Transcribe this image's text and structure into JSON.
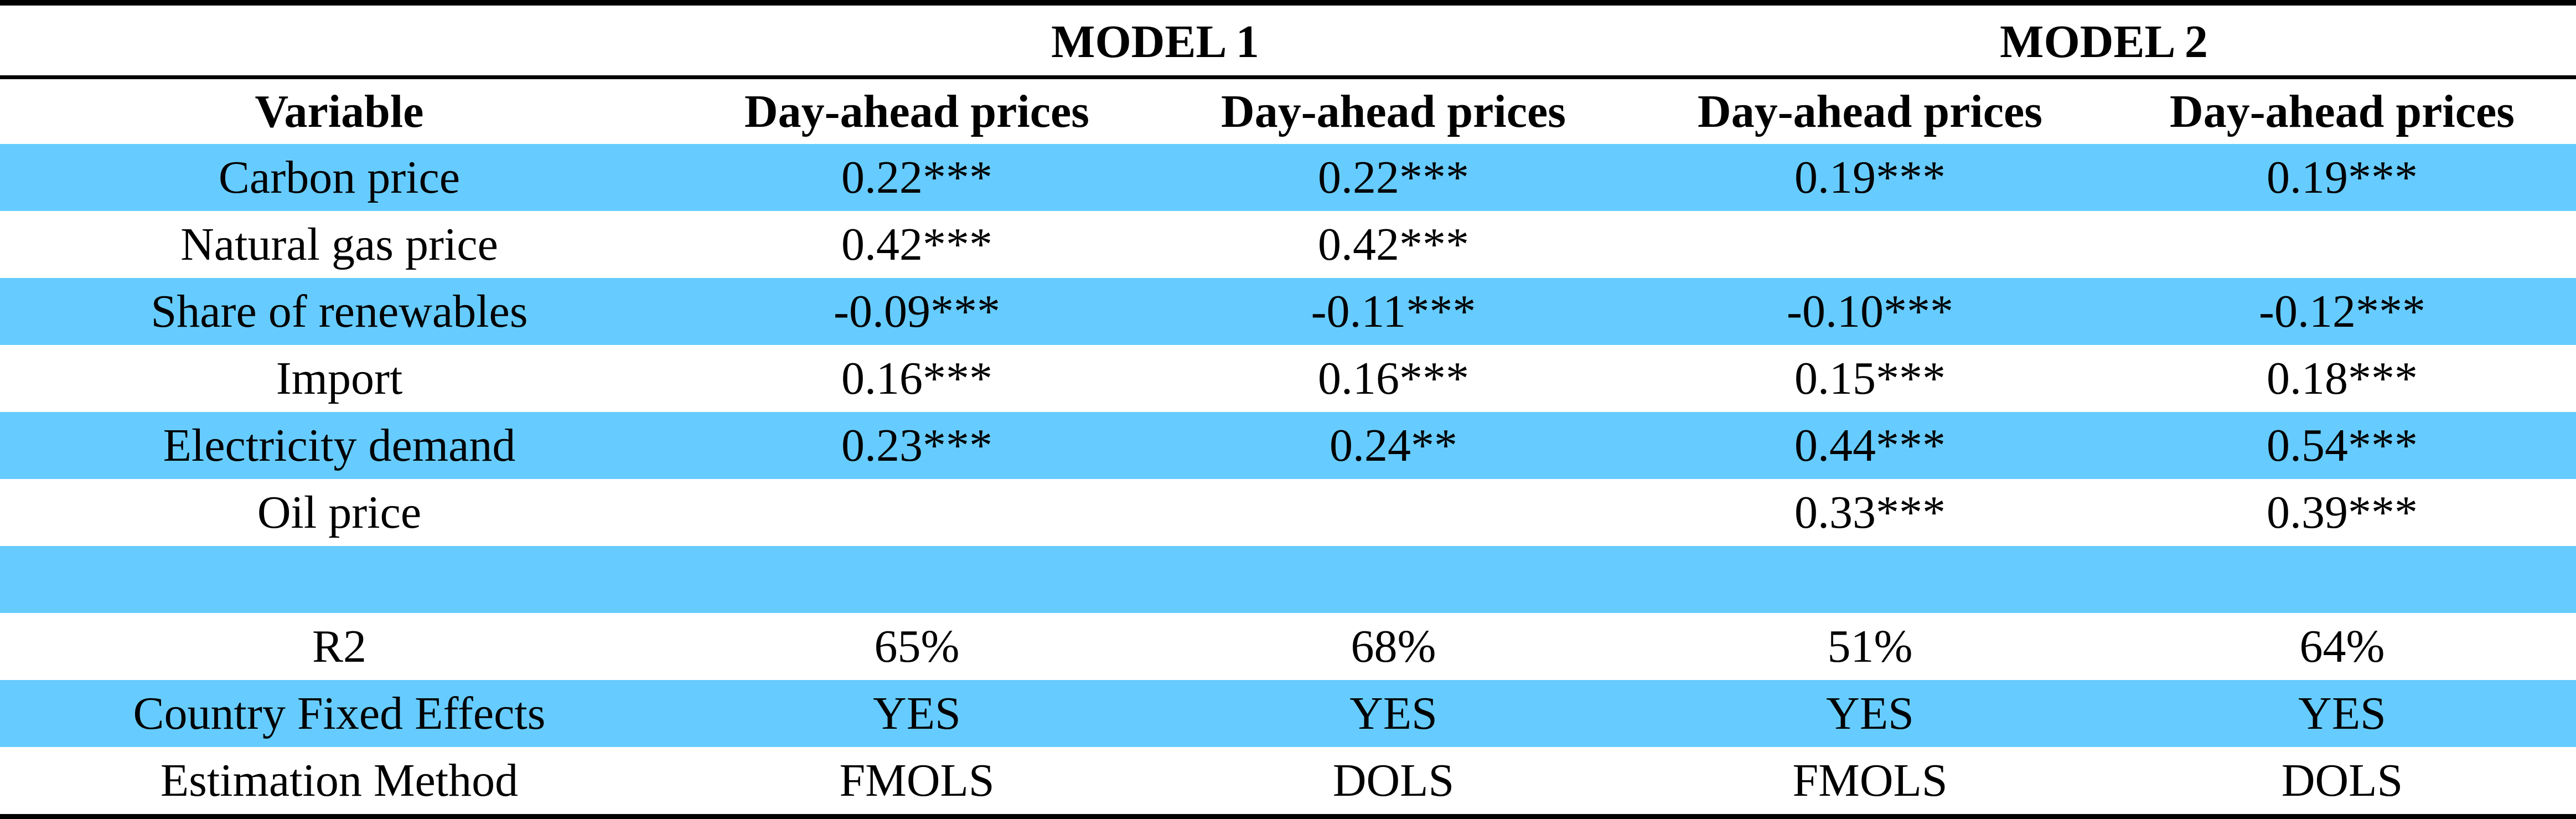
{
  "colors": {
    "band": "#66ccff",
    "rule": "#000000",
    "background": "#ffffff"
  },
  "models": [
    "MODEL 1",
    "MODEL 2"
  ],
  "header": {
    "variable": "Variable",
    "columns": [
      "Day-ahead prices",
      "Day-ahead prices",
      "Day-ahead prices",
      "Day-ahead prices"
    ]
  },
  "rows": [
    {
      "label": "Carbon price",
      "values": [
        "0.22***",
        "0.22***",
        "0.19***",
        "0.19***"
      ],
      "shaded": true
    },
    {
      "label": "Natural gas price",
      "values": [
        "0.42***",
        "0.42***",
        "",
        ""
      ],
      "shaded": false
    },
    {
      "label": "Share of renewables",
      "values": [
        "-0.09***",
        "-0.11***",
        "-0.10***",
        "-0.12***"
      ],
      "shaded": true
    },
    {
      "label": "Import",
      "values": [
        "0.16***",
        "0.16***",
        "0.15***",
        "0.18***"
      ],
      "shaded": false
    },
    {
      "label": "Electricity demand",
      "values": [
        "0.23***",
        "0.24**",
        "0.44***",
        "0.54***"
      ],
      "shaded": true
    },
    {
      "label": "Oil price",
      "values": [
        "",
        "",
        "0.33***",
        "0.39***"
      ],
      "shaded": false
    },
    {
      "label": "",
      "values": [
        "",
        "",
        "",
        ""
      ],
      "shaded": true
    },
    {
      "label": "R2",
      "values": [
        "65%",
        "68%",
        "51%",
        "64%"
      ],
      "shaded": false
    },
    {
      "label": "Country Fixed Effects",
      "values": [
        "YES",
        "YES",
        "YES",
        "YES"
      ],
      "shaded": true
    },
    {
      "label": "Estimation Method",
      "values": [
        "FMOLS",
        "DOLS",
        "FMOLS",
        "DOLS"
      ],
      "shaded": false
    }
  ]
}
